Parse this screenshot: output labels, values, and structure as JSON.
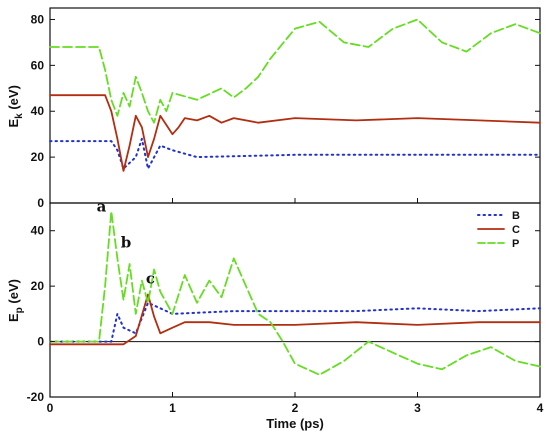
{
  "chart_data": [
    {
      "panel": "top",
      "type": "line",
      "ylabel_main": "E",
      "ylabel_sub": "k",
      "ylabel_unit": " (eV)",
      "ylim": [
        0,
        85
      ],
      "xlim": [
        0,
        4
      ],
      "yticks": [
        0,
        20,
        40,
        60,
        80
      ],
      "series": [
        {
          "name": "B",
          "color": "#2233cc",
          "style": "dotted",
          "points": [
            [
              0,
              27
            ],
            [
              0.4,
              27
            ],
            [
              0.5,
              27
            ],
            [
              0.55,
              23
            ],
            [
              0.6,
              15
            ],
            [
              0.7,
              20
            ],
            [
              0.75,
              28
            ],
            [
              0.8,
              15
            ],
            [
              0.9,
              25
            ],
            [
              1.0,
              23
            ],
            [
              1.2,
              20
            ],
            [
              2.0,
              21
            ],
            [
              3.0,
              21
            ],
            [
              4.0,
              21
            ]
          ]
        },
        {
          "name": "C",
          "color": "#b22e10",
          "style": "solid",
          "points": [
            [
              0,
              47
            ],
            [
              0.45,
              47
            ],
            [
              0.5,
              40
            ],
            [
              0.55,
              28
            ],
            [
              0.6,
              14
            ],
            [
              0.65,
              25
            ],
            [
              0.7,
              38
            ],
            [
              0.75,
              33
            ],
            [
              0.8,
              20
            ],
            [
              0.85,
              28
            ],
            [
              0.9,
              38
            ],
            [
              1.0,
              30
            ],
            [
              1.05,
              33
            ],
            [
              1.1,
              37
            ],
            [
              1.2,
              36
            ],
            [
              1.3,
              38
            ],
            [
              1.4,
              35
            ],
            [
              1.5,
              37
            ],
            [
              1.7,
              35
            ],
            [
              2.0,
              37
            ],
            [
              2.5,
              36
            ],
            [
              3.0,
              37
            ],
            [
              3.5,
              36
            ],
            [
              4.0,
              35
            ]
          ]
        },
        {
          "name": "P",
          "color": "#66dd22",
          "style": "dashed",
          "points": [
            [
              0,
              68
            ],
            [
              0.4,
              68
            ],
            [
              0.45,
              58
            ],
            [
              0.5,
              45
            ],
            [
              0.55,
              38
            ],
            [
              0.6,
              48
            ],
            [
              0.65,
              42
            ],
            [
              0.7,
              55
            ],
            [
              0.75,
              48
            ],
            [
              0.8,
              40
            ],
            [
              0.85,
              35
            ],
            [
              0.9,
              45
            ],
            [
              0.95,
              40
            ],
            [
              1.0,
              48
            ],
            [
              1.2,
              45
            ],
            [
              1.4,
              50
            ],
            [
              1.5,
              46
            ],
            [
              1.6,
              50
            ],
            [
              1.7,
              55
            ],
            [
              1.8,
              63
            ],
            [
              2.0,
              76
            ],
            [
              2.2,
              79
            ],
            [
              2.4,
              70
            ],
            [
              2.6,
              68
            ],
            [
              2.8,
              76
            ],
            [
              3.0,
              80
            ],
            [
              3.2,
              70
            ],
            [
              3.4,
              66
            ],
            [
              3.6,
              74
            ],
            [
              3.8,
              78
            ],
            [
              4.0,
              74
            ]
          ]
        }
      ]
    },
    {
      "panel": "bottom",
      "type": "line",
      "xlabel": "Time (ps)",
      "ylabel_main": "E",
      "ylabel_sub": "p",
      "ylabel_unit": " (eV)",
      "ylim": [
        -20,
        50
      ],
      "xlim": [
        0,
        4
      ],
      "xticks": [
        0,
        1,
        2,
        3,
        4
      ],
      "yticks": [
        -20,
        0,
        20,
        40
      ],
      "legend_position": "top-right",
      "annotations": [
        {
          "text": "a",
          "x": 0.42,
          "y": 47
        },
        {
          "text": "b",
          "x": 0.62,
          "y": 34
        },
        {
          "text": "c",
          "x": 0.82,
          "y": 21
        }
      ],
      "series": [
        {
          "name": "B",
          "color": "#2233cc",
          "style": "dotted",
          "points": [
            [
              0,
              0
            ],
            [
              0.5,
              0
            ],
            [
              0.55,
              10
            ],
            [
              0.6,
              5
            ],
            [
              0.7,
              3
            ],
            [
              0.8,
              14
            ],
            [
              0.9,
              12
            ],
            [
              1.0,
              10
            ],
            [
              1.5,
              11
            ],
            [
              2.0,
              11
            ],
            [
              2.5,
              11
            ],
            [
              3.0,
              12
            ],
            [
              3.5,
              11
            ],
            [
              4.0,
              12
            ]
          ]
        },
        {
          "name": "C",
          "color": "#b22e10",
          "style": "solid",
          "points": [
            [
              0,
              -1
            ],
            [
              0.6,
              -1
            ],
            [
              0.7,
              2
            ],
            [
              0.8,
              17
            ],
            [
              0.85,
              9
            ],
            [
              0.9,
              3
            ],
            [
              1.0,
              5
            ],
            [
              1.1,
              7
            ],
            [
              1.3,
              7
            ],
            [
              1.5,
              6
            ],
            [
              2.0,
              6
            ],
            [
              2.5,
              7
            ],
            [
              3.0,
              6
            ],
            [
              3.5,
              7
            ],
            [
              4.0,
              7
            ]
          ]
        },
        {
          "name": "P",
          "color": "#66dd22",
          "style": "dashed",
          "points": [
            [
              0,
              0
            ],
            [
              0.4,
              0
            ],
            [
              0.45,
              20
            ],
            [
              0.5,
              47
            ],
            [
              0.55,
              30
            ],
            [
              0.6,
              15
            ],
            [
              0.65,
              28
            ],
            [
              0.7,
              10
            ],
            [
              0.75,
              22
            ],
            [
              0.8,
              14
            ],
            [
              0.85,
              26
            ],
            [
              0.9,
              18
            ],
            [
              1.0,
              10
            ],
            [
              1.1,
              24
            ],
            [
              1.2,
              14
            ],
            [
              1.3,
              22
            ],
            [
              1.4,
              16
            ],
            [
              1.5,
              30
            ],
            [
              1.6,
              20
            ],
            [
              1.7,
              10
            ],
            [
              1.8,
              7
            ],
            [
              1.9,
              0
            ],
            [
              2.0,
              -8
            ],
            [
              2.2,
              -12
            ],
            [
              2.4,
              -7
            ],
            [
              2.6,
              0
            ],
            [
              2.8,
              -4
            ],
            [
              3.0,
              -8
            ],
            [
              3.2,
              -10
            ],
            [
              3.4,
              -5
            ],
            [
              3.6,
              -2
            ],
            [
              3.8,
              -7
            ],
            [
              4.0,
              -9
            ]
          ]
        }
      ]
    }
  ]
}
